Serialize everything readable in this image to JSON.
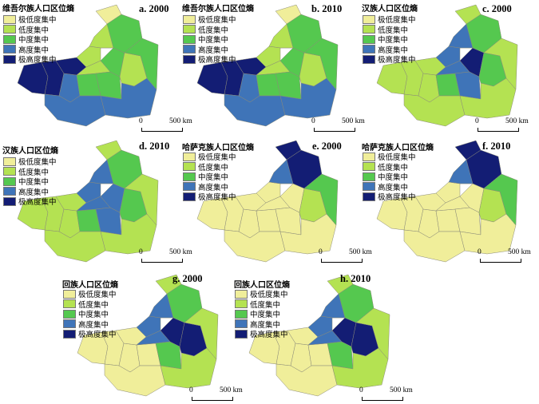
{
  "legend_levels": [
    {
      "label": "极低度集中",
      "color": "#f0ee9a"
    },
    {
      "label": "低度集中",
      "color": "#b4e252"
    },
    {
      "label": "中度集中",
      "color": "#55c84f"
    },
    {
      "label": "高度集中",
      "color": "#3f74b8"
    },
    {
      "label": "极高度集中",
      "color": "#131d74"
    }
  ],
  "scale": {
    "zero": "0",
    "distance": "500 km"
  },
  "panels": [
    {
      "title": "维吾尔族人口区位熵",
      "label": "a. 2000",
      "levels": [
        4,
        4,
        3,
        4,
        2,
        3,
        1,
        2,
        2,
        1,
        1,
        3,
        2,
        0,
        1,
        2
      ]
    },
    {
      "title": "维吾尔族人口区位熵",
      "label": "b. 2010",
      "levels": [
        4,
        4,
        3,
        4,
        2,
        3,
        1,
        2,
        2,
        1,
        1,
        3,
        2,
        0,
        1,
        2
      ]
    },
    {
      "title": "汉族人口区位熵",
      "label": "c. 2000",
      "levels": [
        1,
        1,
        1,
        1,
        2,
        1,
        3,
        3,
        4,
        3,
        2,
        1,
        2,
        1,
        3,
        1
      ]
    },
    {
      "title": "汉族人口区位熵",
      "label": "d. 2010",
      "levels": [
        1,
        1,
        1,
        1,
        2,
        1,
        3,
        3,
        3,
        3,
        2,
        1,
        2,
        1,
        3,
        1
      ]
    },
    {
      "title": "哈萨克族人口区位熵",
      "label": "e. 2000",
      "levels": [
        0,
        0,
        0,
        0,
        0,
        0,
        0,
        0,
        0,
        0,
        1,
        0,
        4,
        4,
        3,
        2
      ]
    },
    {
      "title": "哈萨克族人口区位熵",
      "label": "f. 2010",
      "levels": [
        0,
        0,
        0,
        0,
        0,
        0,
        0,
        0,
        0,
        0,
        1,
        0,
        4,
        4,
        3,
        2
      ]
    },
    {
      "title": "回族人口区位熵",
      "label": "g. 2000",
      "levels": [
        0,
        0,
        0,
        0,
        0,
        0,
        3,
        2,
        4,
        3,
        4,
        1,
        2,
        1,
        3,
        1
      ]
    },
    {
      "title": "回族人口区位熵",
      "label": "h. 2010",
      "levels": [
        0,
        0,
        0,
        0,
        0,
        0,
        3,
        2,
        4,
        3,
        4,
        1,
        2,
        1,
        3,
        1
      ]
    }
  ]
}
